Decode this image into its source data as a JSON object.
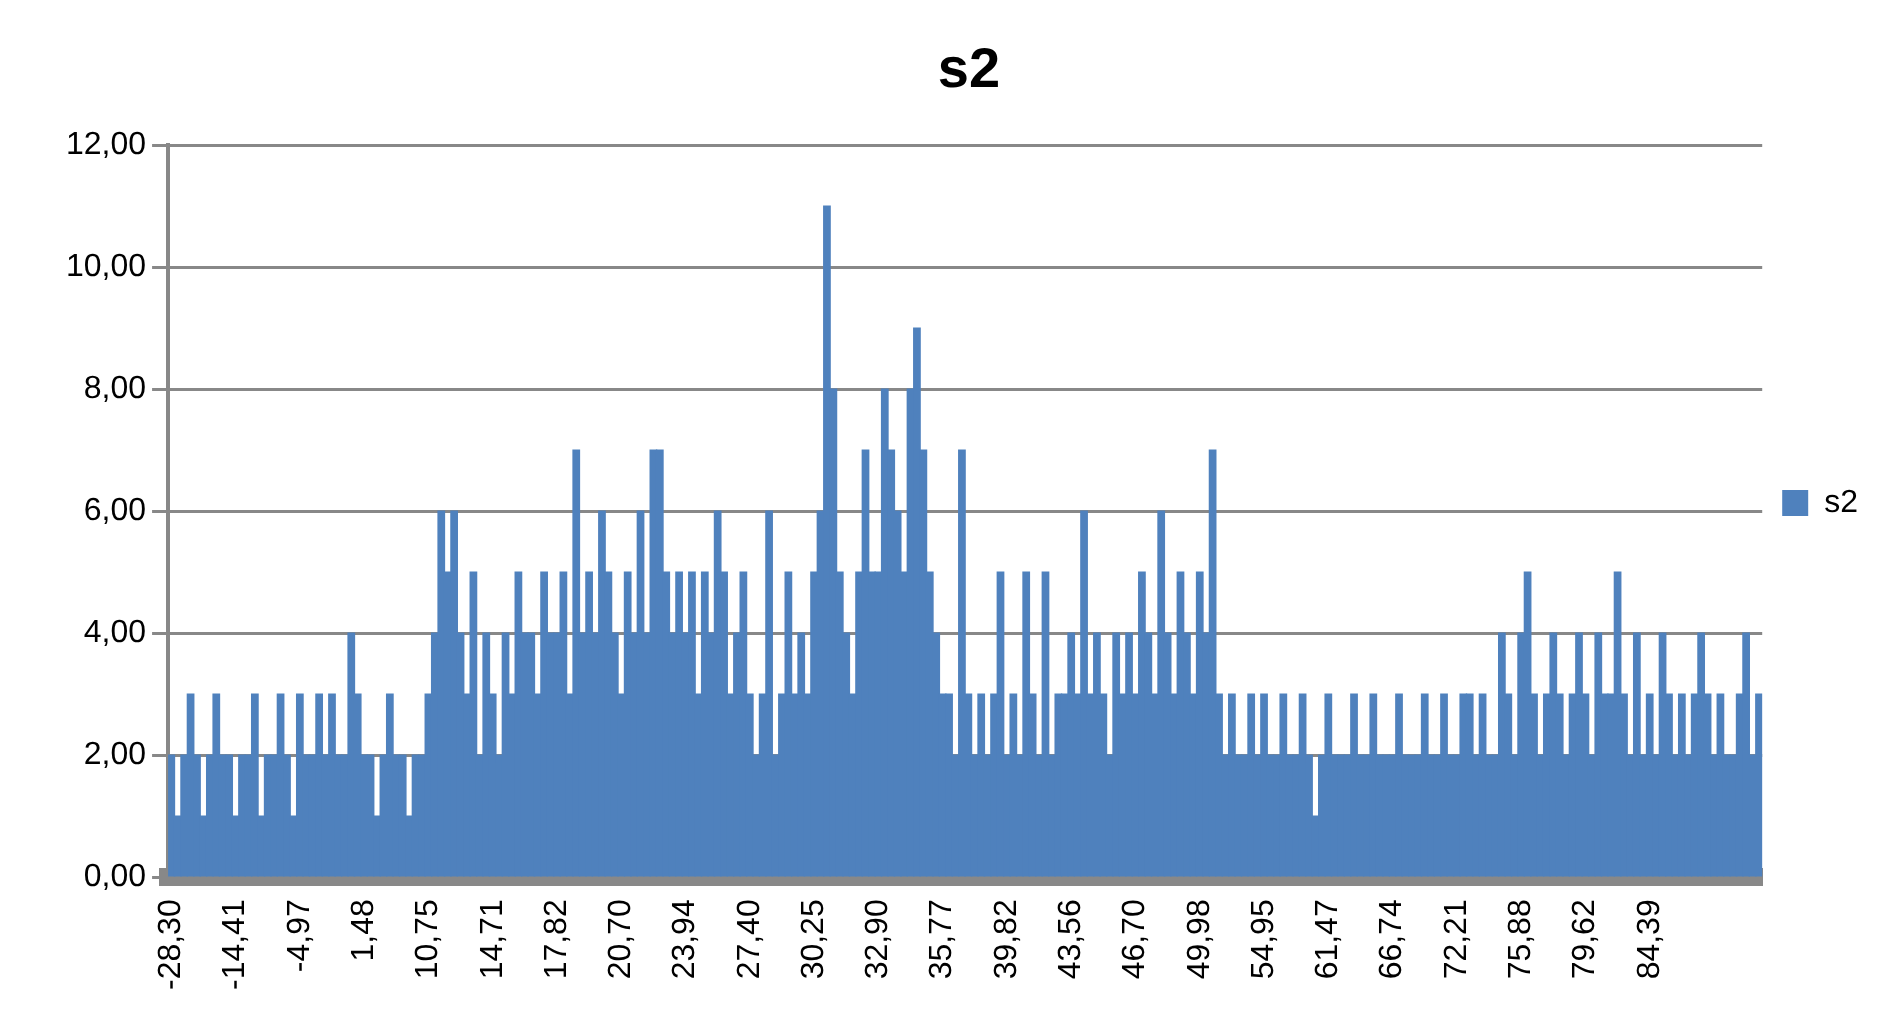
{
  "chart_data": {
    "type": "bar",
    "title": "s2",
    "categories": [
      "-28,30",
      null,
      null,
      null,
      null,
      null,
      null,
      null,
      null,
      null,
      "-14,41",
      null,
      null,
      null,
      null,
      null,
      null,
      null,
      null,
      null,
      "-4,97",
      null,
      null,
      null,
      null,
      null,
      null,
      null,
      null,
      null,
      "1,48",
      null,
      null,
      null,
      null,
      null,
      null,
      null,
      null,
      null,
      "10,75",
      null,
      null,
      null,
      null,
      null,
      null,
      null,
      null,
      null,
      "14,71",
      null,
      null,
      null,
      null,
      null,
      null,
      null,
      null,
      null,
      "17,82",
      null,
      null,
      null,
      null,
      null,
      null,
      null,
      null,
      null,
      "20,70",
      null,
      null,
      null,
      null,
      null,
      null,
      null,
      null,
      null,
      "23,94",
      null,
      null,
      null,
      null,
      null,
      null,
      null,
      null,
      null,
      "27,40",
      null,
      null,
      null,
      null,
      null,
      null,
      null,
      null,
      null,
      "30,25",
      null,
      null,
      null,
      null,
      null,
      null,
      null,
      null,
      null,
      "32,90",
      null,
      null,
      null,
      null,
      null,
      null,
      null,
      null,
      null,
      "35,77",
      null,
      null,
      null,
      null,
      null,
      null,
      null,
      null,
      null,
      "39,82",
      null,
      null,
      null,
      null,
      null,
      null,
      null,
      null,
      null,
      "43,56",
      null,
      null,
      null,
      null,
      null,
      null,
      null,
      null,
      null,
      "46,70",
      null,
      null,
      null,
      null,
      null,
      null,
      null,
      null,
      null,
      "49,98",
      null,
      null,
      null,
      null,
      null,
      null,
      null,
      null,
      null,
      "54,95",
      null,
      null,
      null,
      null,
      null,
      null,
      null,
      null,
      null,
      "61,47",
      null,
      null,
      null,
      null,
      null,
      null,
      null,
      null,
      null,
      "66,74",
      null,
      null,
      null,
      null,
      null,
      null,
      null,
      null,
      null,
      "72,21",
      null,
      null,
      null,
      null,
      null,
      null,
      null,
      null,
      null,
      "75,88",
      null,
      null,
      null,
      null,
      null,
      null,
      null,
      null,
      null,
      "79,62",
      null,
      null,
      null,
      null,
      null,
      null,
      null,
      null,
      null,
      "84,39",
      null,
      null,
      null,
      null,
      null,
      null,
      null,
      null,
      null,
      null,
      null,
      null,
      null,
      null,
      null,
      null,
      null
    ],
    "series": [
      {
        "name": "s2",
        "color": "#4f81bd",
        "values": [
          2,
          1,
          2,
          3,
          2,
          1,
          2,
          3,
          2,
          2,
          1,
          2,
          2,
          3,
          1,
          2,
          2,
          3,
          2,
          1,
          3,
          2,
          2,
          3,
          2,
          3,
          2,
          2,
          4,
          3,
          2,
          2,
          1,
          2,
          3,
          2,
          2,
          1,
          2,
          2,
          3,
          4,
          6,
          5,
          6,
          4,
          3,
          5,
          2,
          4,
          3,
          2,
          4,
          3,
          5,
          4,
          4,
          3,
          5,
          4,
          4,
          5,
          3,
          7,
          4,
          5,
          4,
          6,
          5,
          4,
          3,
          5,
          4,
          6,
          4,
          7,
          7,
          5,
          4,
          5,
          4,
          5,
          3,
          5,
          4,
          6,
          5,
          3,
          4,
          5,
          3,
          2,
          3,
          6,
          2,
          3,
          5,
          3,
          4,
          3,
          5,
          6,
          11,
          8,
          5,
          4,
          3,
          5,
          7,
          5,
          5,
          8,
          7,
          6,
          5,
          8,
          9,
          7,
          5,
          4,
          3,
          3,
          2,
          7,
          3,
          2,
          3,
          2,
          3,
          5,
          2,
          3,
          2,
          5,
          3,
          2,
          5,
          2,
          3,
          3,
          4,
          3,
          6,
          3,
          4,
          3,
          2,
          4,
          3,
          4,
          3,
          5,
          4,
          3,
          6,
          4,
          3,
          5,
          4,
          3,
          5,
          4,
          7,
          3,
          2,
          3,
          2,
          2,
          3,
          2,
          3,
          2,
          2,
          3,
          2,
          2,
          3,
          2,
          1,
          2,
          3,
          2,
          2,
          2,
          3,
          2,
          2,
          3,
          2,
          2,
          2,
          3,
          2,
          2,
          2,
          3,
          2,
          2,
          3,
          2,
          2,
          3,
          3,
          2,
          3,
          2,
          2,
          4,
          3,
          2,
          4,
          5,
          3,
          2,
          3,
          4,
          3,
          2,
          3,
          4,
          3,
          2,
          4,
          3,
          3,
          5,
          3,
          2,
          4,
          2,
          3,
          2,
          4,
          3,
          2,
          3,
          2,
          3,
          4,
          3,
          2,
          3,
          2,
          2,
          3,
          4,
          2,
          3
        ]
      }
    ],
    "ylim": [
      0,
      12
    ],
    "yticks": [
      {
        "value": 0,
        "label": "0,00"
      },
      {
        "value": 2,
        "label": "2,00"
      },
      {
        "value": 4,
        "label": "4,00"
      },
      {
        "value": 6,
        "label": "6,00"
      },
      {
        "value": 8,
        "label": "8,00"
      },
      {
        "value": 10,
        "label": "10,00"
      },
      {
        "value": 12,
        "label": "12,00"
      }
    ],
    "grid": "y",
    "legend": "right"
  }
}
